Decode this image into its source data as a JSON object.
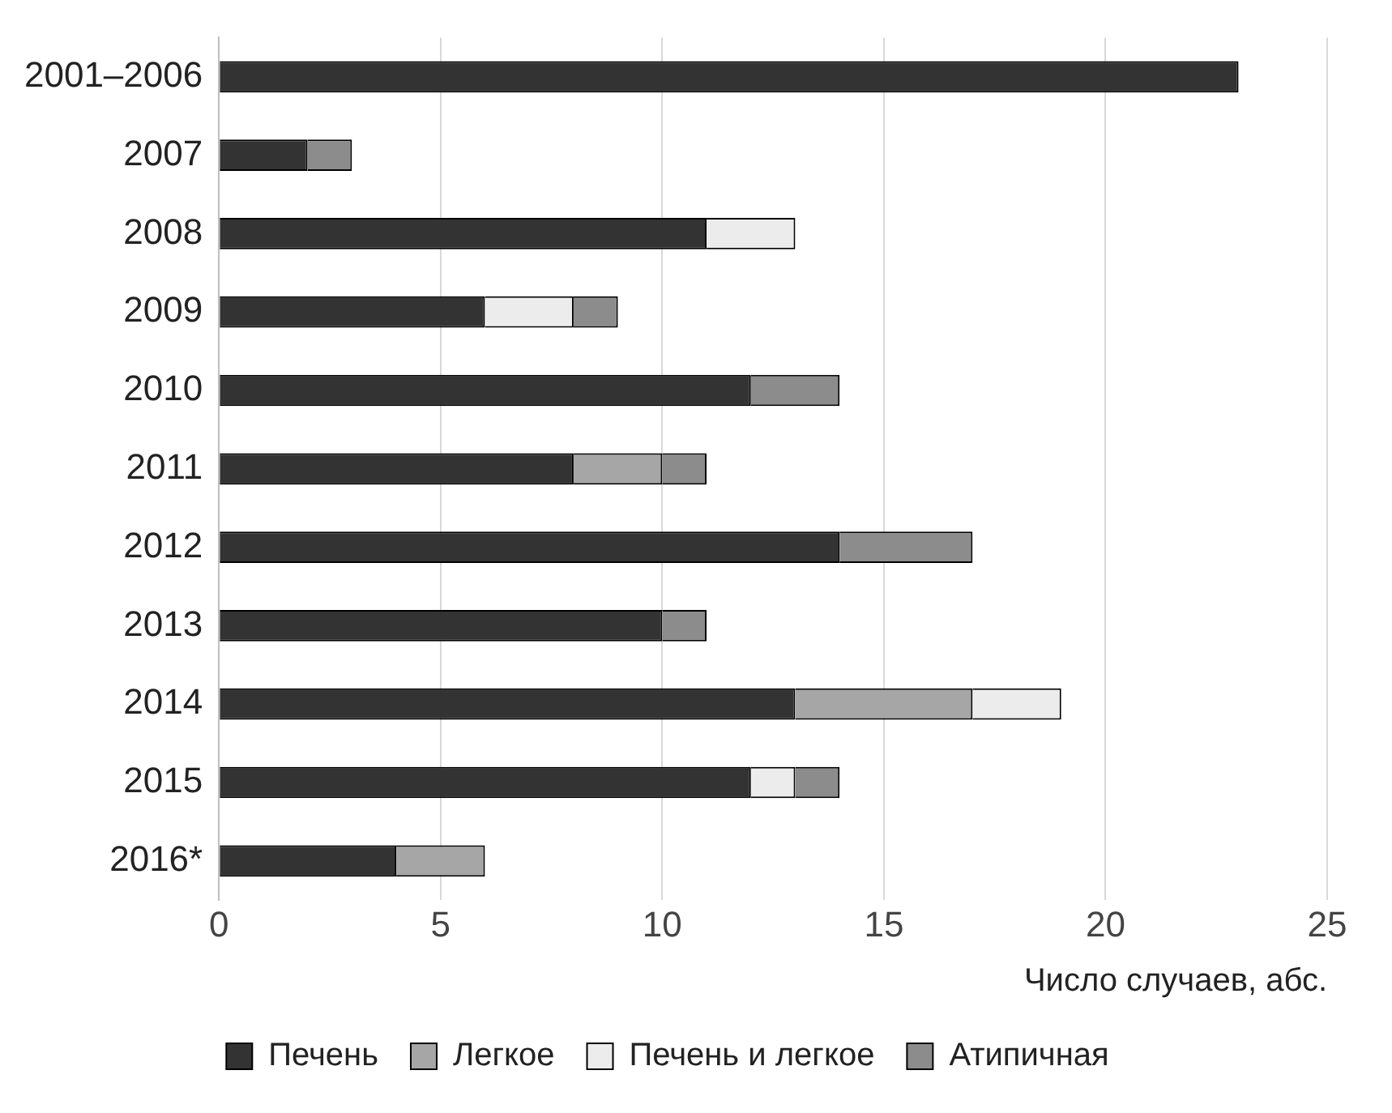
{
  "chart_data": {
    "type": "bar",
    "orientation": "horizontal",
    "stacked": true,
    "xlabel": "Число случаев, абс.",
    "categories": [
      "2001–2006",
      "2007",
      "2008",
      "2009",
      "2010",
      "2011",
      "2012",
      "2013",
      "2014",
      "2015",
      "2016*"
    ],
    "series": [
      {
        "name": "Печень",
        "color": "#333333",
        "values": [
          23,
          2,
          11,
          6,
          12,
          8,
          14,
          10,
          13,
          12,
          4
        ]
      },
      {
        "name": "Легкое",
        "color": "#a6a6a6",
        "values": [
          0,
          0,
          0,
          0,
          0,
          2,
          0,
          0,
          4,
          0,
          2
        ]
      },
      {
        "name": "Печень и легкое",
        "color": "#ececec",
        "values": [
          0,
          0,
          2,
          2,
          0,
          0,
          0,
          0,
          2,
          1,
          0
        ]
      },
      {
        "name": "Атипичная",
        "color": "#8c8c8c",
        "values": [
          0,
          1,
          0,
          1,
          2,
          1,
          3,
          1,
          0,
          1,
          0
        ]
      }
    ],
    "xlim": [
      0,
      25
    ],
    "xticks": [
      0,
      5,
      10,
      15,
      20,
      25
    ],
    "grid": "x",
    "legend": "bottom"
  }
}
